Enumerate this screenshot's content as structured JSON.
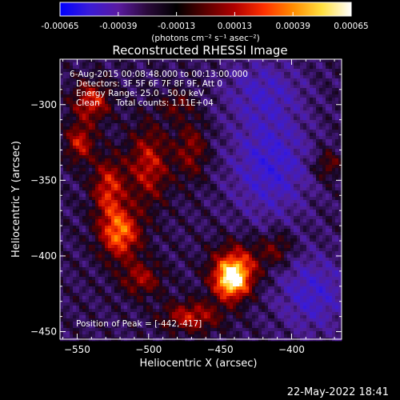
{
  "colorbar": {
    "ticks": [
      "-0.00065",
      "-0.00039",
      "-0.00013",
      "0.00013",
      "0.00039",
      "0.00065"
    ],
    "units_label": "(photons cm⁻² s⁻¹ asec⁻²)",
    "range": [
      -0.00065,
      0.00065
    ],
    "colors": [
      "#0000ff",
      "#3a1bd8",
      "#5a1aa0",
      "#2a0a3a",
      "#000000",
      "#5a0000",
      "#b00000",
      "#ff3000",
      "#ff8c00",
      "#ffe040",
      "#ffffff"
    ]
  },
  "chart_data": {
    "type": "heatmap",
    "title": "Reconstructed RHESSI Image",
    "xlabel": "Heliocentric X (arcsec)",
    "ylabel": "Heliocentric Y (arcsec)",
    "xlim": [
      -562,
      -365
    ],
    "ylim": [
      -455,
      -270
    ],
    "xticks": [
      -550,
      -500,
      -450,
      -400
    ],
    "yticks": [
      -300,
      -350,
      -400,
      -450
    ],
    "peak": [
      -442,
      -417
    ],
    "sources": [
      {
        "x": -442,
        "y": -417,
        "amp": 1.0,
        "sx": 9,
        "sy": 9
      },
      {
        "x": -438,
        "y": -405,
        "amp": 0.55,
        "sx": 12,
        "sy": 10
      },
      {
        "x": -520,
        "y": -385,
        "amp": 0.8,
        "sx": 10,
        "sy": 12
      },
      {
        "x": -528,
        "y": -355,
        "amp": 0.6,
        "sx": 8,
        "sy": 14
      },
      {
        "x": -548,
        "y": -325,
        "amp": 0.55,
        "sx": 7,
        "sy": 9
      },
      {
        "x": -540,
        "y": -298,
        "amp": 0.6,
        "sx": 9,
        "sy": 9
      },
      {
        "x": -500,
        "y": -340,
        "amp": 0.55,
        "sx": 10,
        "sy": 18
      },
      {
        "x": -470,
        "y": -330,
        "amp": 0.4,
        "sx": 8,
        "sy": 14
      },
      {
        "x": -470,
        "y": -440,
        "amp": 0.55,
        "sx": 14,
        "sy": 7
      },
      {
        "x": -505,
        "y": -415,
        "amp": 0.45,
        "sx": 10,
        "sy": 8
      },
      {
        "x": -410,
        "y": -395,
        "amp": 0.35,
        "sx": 8,
        "sy": 8
      },
      {
        "x": -375,
        "y": -340,
        "amp": 0.35,
        "sx": 7,
        "sy": 7
      },
      {
        "x": -480,
        "y": -300,
        "amp": 0.3,
        "sx": 8,
        "sy": 6
      },
      {
        "x": -415,
        "y": -340,
        "amp": -0.45,
        "sx": 20,
        "sy": 25
      },
      {
        "x": -385,
        "y": -425,
        "amp": -0.4,
        "sx": 18,
        "sy": 18
      },
      {
        "x": -420,
        "y": -290,
        "amp": -0.3,
        "sx": 20,
        "sy": 15
      }
    ]
  },
  "annotations": {
    "time": "6-Aug-2015 00:08:48.000 to 00:13:00.000",
    "detectors": "Detectors: 3F 5F 6F 7F 8F 9F, Att 0",
    "energy": "Energy Range: 25.0 - 50.0 keV",
    "clean": "Clean      Total counts: 1.11E+04",
    "peak": "Position of Peak = [-442,-417]"
  },
  "footer": {
    "timestamp": "22-May-2022 18:41"
  }
}
